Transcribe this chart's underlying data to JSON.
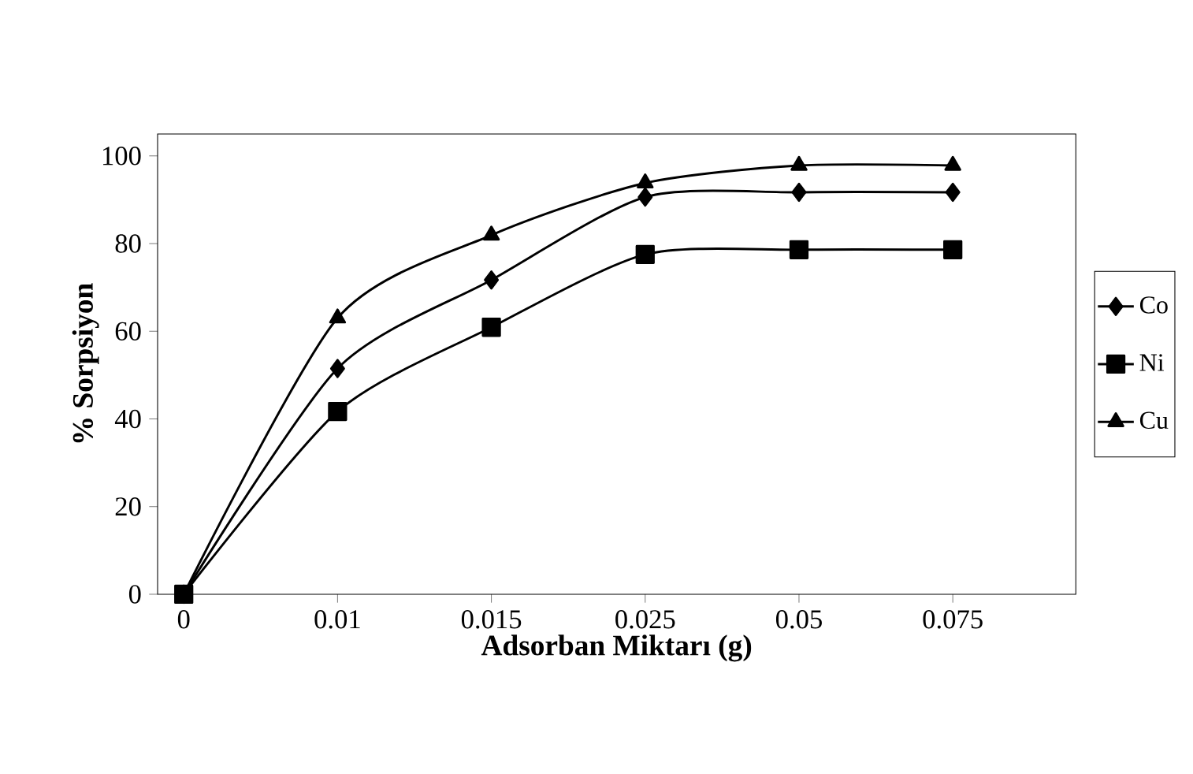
{
  "chart_data": {
    "type": "line",
    "xlabel": "Adsorban Miktarı (g)",
    "ylabel": "% Sorpsiyon",
    "categories": [
      "0",
      "0.01",
      "0.015",
      "0.025",
      "0.05",
      "0.075"
    ],
    "series": [
      {
        "name": "Co",
        "color": "#000000",
        "marker": "diamond",
        "values": [
          0,
          51.5,
          71.7,
          90.6,
          91.7,
          91.7
        ]
      },
      {
        "name": "Ni",
        "color": "#000000",
        "marker": "square",
        "values": [
          0,
          41.7,
          60.9,
          77.5,
          78.6,
          78.6
        ]
      },
      {
        "name": "Cu",
        "color": "#000000",
        "marker": "triangle",
        "values": [
          0,
          63,
          81.9,
          93.8,
          97.8,
          97.8
        ]
      }
    ],
    "ylim": [
      0,
      105
    ],
    "yticks": [
      0,
      20,
      40,
      60,
      80,
      100
    ],
    "grid": false,
    "legend": "right",
    "line_style": "solid"
  }
}
